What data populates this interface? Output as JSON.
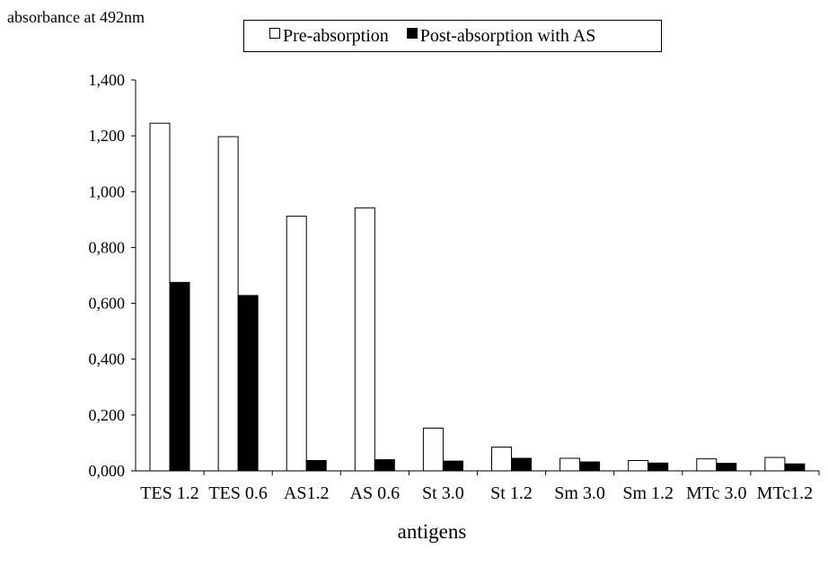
{
  "chart_data": {
    "type": "bar",
    "title": "",
    "ylabel": "absorbance at 492nm",
    "xlabel": "antigens",
    "categories": [
      "TES 1.2",
      "TES 0.6",
      "AS1.2",
      "AS 0.6",
      "St 3.0",
      "St 1.2",
      "Sm 3.0",
      "Sm 1.2",
      "MTc 3.0",
      "MTc1.2"
    ],
    "series": [
      {
        "name": "Pre-absorption",
        "color": "#ffffff",
        "values": [
          1.245,
          1.197,
          0.912,
          0.942,
          0.153,
          0.085,
          0.045,
          0.037,
          0.043,
          0.048
        ]
      },
      {
        "name": "Post-absorption with AS",
        "color": "#000000",
        "values": [
          0.675,
          0.628,
          0.037,
          0.04,
          0.035,
          0.045,
          0.032,
          0.028,
          0.027,
          0.025
        ]
      }
    ],
    "yticks": [
      "0,000",
      "0,200",
      "0,400",
      "0,600",
      "0,800",
      "1,000",
      "1,200",
      "1,400"
    ],
    "ylim": [
      0,
      1.4
    ],
    "grid": false,
    "legend_position": "top"
  }
}
